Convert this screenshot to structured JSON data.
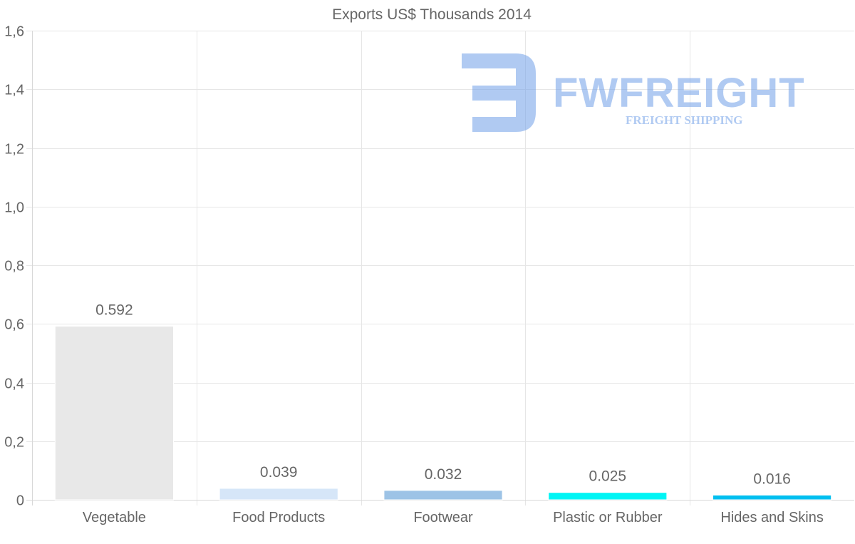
{
  "chart_data": {
    "type": "bar",
    "title": "Exports US$ Thousands 2014",
    "categories": [
      "Vegetable",
      "Food Products",
      "Footwear",
      "Plastic or Rubber",
      "Hides and Skins"
    ],
    "values": [
      0.592,
      0.039,
      0.032,
      0.025,
      0.016
    ],
    "value_labels": [
      "0.592",
      "0.039",
      "0.032",
      "0.025",
      "0.016"
    ],
    "bar_colors": [
      "#e8e8e8",
      "#d6e6f8",
      "#9dc3e6",
      "#00f5f5",
      "#00bff0"
    ],
    "ylim": [
      0,
      1.6
    ],
    "yticks": [
      0,
      0.2,
      0.4,
      0.6,
      0.8,
      1.0,
      1.2,
      1.4,
      1.6
    ],
    "ytick_labels": [
      "0",
      "0,2",
      "0,4",
      "0,6",
      "0,8",
      "1,0",
      "1,2",
      "1,4",
      "1,6"
    ],
    "xlabel": "",
    "ylabel": "",
    "grid": true,
    "legend": "none"
  },
  "watermark": {
    "brand": "FWFREIGHT",
    "tagline": "FREIGHT SHIPPING",
    "color": "#6f9ee8"
  }
}
